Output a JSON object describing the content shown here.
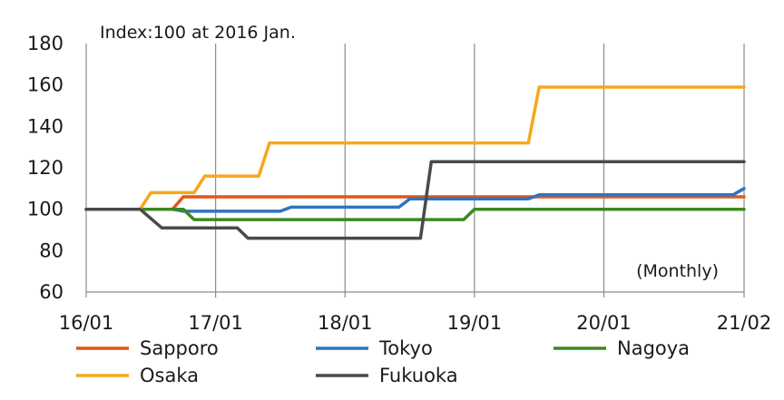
{
  "chart_data": {
    "type": "line",
    "title": "",
    "subtitle": "Index:100 at 2016 Jan.",
    "xlabel": "",
    "ylabel": "",
    "frequency_note": "(Monthly)",
    "ylim": [
      60,
      180
    ],
    "yticks": [
      60,
      80,
      100,
      120,
      140,
      160,
      180
    ],
    "xlim": [
      "2016-01",
      "2021-02"
    ],
    "xticks": [
      "16/01",
      "17/01",
      "18/01",
      "19/01",
      "20/01",
      "21/02"
    ],
    "xtick_dates": [
      "2016-01",
      "2017-01",
      "2018-01",
      "2019-01",
      "2020-01",
      "2021-02"
    ],
    "grid": {
      "horizontal": false,
      "vertical": true
    },
    "legend_position": "bottom",
    "series": [
      {
        "name": "Sapporo",
        "color": "#E0561B",
        "points": [
          [
            "2016-01",
            100
          ],
          [
            "2016-09",
            100
          ],
          [
            "2016-10",
            106
          ],
          [
            "2021-02",
            106
          ]
        ]
      },
      {
        "name": "Tokyo",
        "color": "#2F74C0",
        "points": [
          [
            "2016-01",
            100
          ],
          [
            "2016-09",
            100
          ],
          [
            "2016-10",
            99
          ],
          [
            "2017-07",
            99
          ],
          [
            "2017-08",
            101
          ],
          [
            "2018-06",
            101
          ],
          [
            "2018-07",
            105
          ],
          [
            "2019-06",
            105
          ],
          [
            "2019-07",
            107
          ],
          [
            "2021-01",
            107
          ],
          [
            "2021-02",
            110
          ]
        ]
      },
      {
        "name": "Nagoya",
        "color": "#3A8A1F",
        "points": [
          [
            "2016-01",
            100
          ],
          [
            "2016-10",
            100
          ],
          [
            "2016-11",
            95
          ],
          [
            "2018-12",
            95
          ],
          [
            "2019-01",
            100
          ],
          [
            "2021-02",
            100
          ]
        ]
      },
      {
        "name": "Osaka",
        "color": "#F5A81D",
        "points": [
          [
            "2016-01",
            100
          ],
          [
            "2016-06",
            100
          ],
          [
            "2016-07",
            108
          ],
          [
            "2016-11",
            108
          ],
          [
            "2016-12",
            116
          ],
          [
            "2017-05",
            116
          ],
          [
            "2017-06",
            132
          ],
          [
            "2019-06",
            132
          ],
          [
            "2019-07",
            159
          ],
          [
            "2021-02",
            159
          ]
        ]
      },
      {
        "name": "Fukuoka",
        "color": "#4A4A4A",
        "points": [
          [
            "2016-01",
            100
          ],
          [
            "2016-06",
            100
          ],
          [
            "2016-08",
            91
          ],
          [
            "2017-03",
            91
          ],
          [
            "2017-04",
            86
          ],
          [
            "2018-08",
            86
          ],
          [
            "2018-09",
            123
          ],
          [
            "2021-02",
            123
          ]
        ]
      }
    ]
  }
}
